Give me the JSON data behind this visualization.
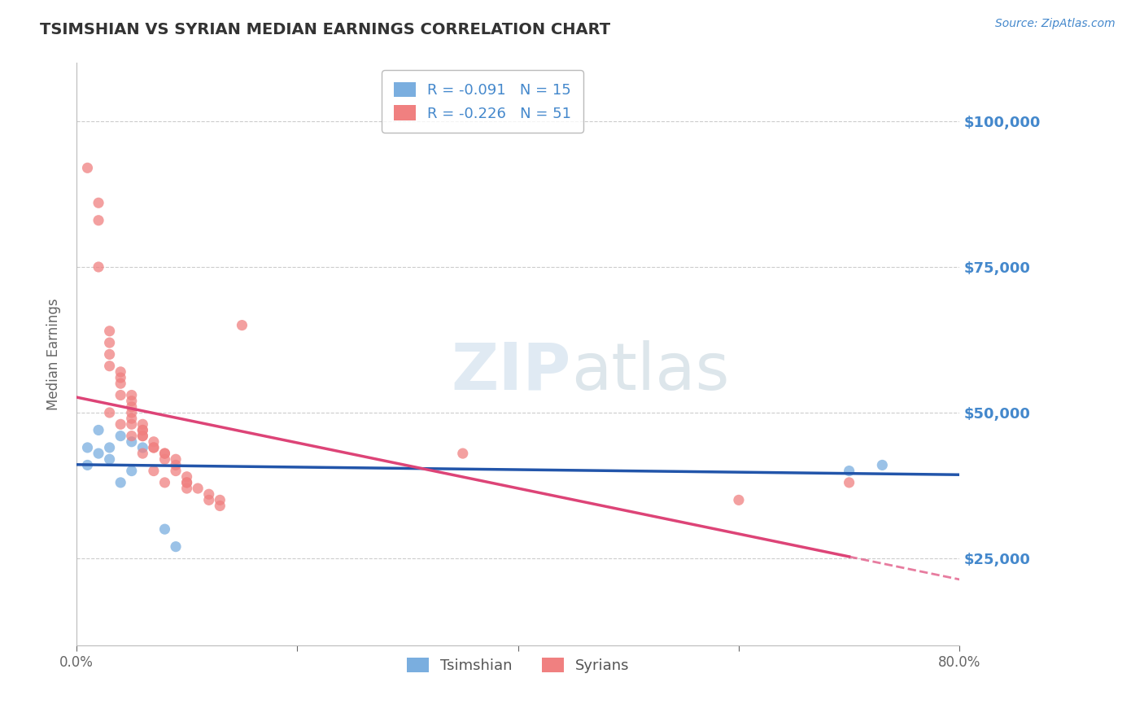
{
  "title": "TSIMSHIAN VS SYRIAN MEDIAN EARNINGS CORRELATION CHART",
  "source_text": "Source: ZipAtlas.com",
  "ylabel": "Median Earnings",
  "watermark_zip": "ZIP",
  "watermark_atlas": "atlas",
  "x_min": 0.0,
  "x_max": 0.8,
  "y_min": 10000,
  "y_max": 110000,
  "yticks": [
    25000,
    50000,
    75000,
    100000
  ],
  "ytick_labels": [
    "$25,000",
    "$50,000",
    "$75,000",
    "$100,000"
  ],
  "xticks": [
    0.0,
    0.2,
    0.4,
    0.6,
    0.8
  ],
  "xtick_labels": [
    "0.0%",
    "",
    "",
    "",
    "80.0%"
  ],
  "tsimshian_R": -0.091,
  "tsimshian_N": 15,
  "syrian_R": -0.226,
  "syrian_N": 51,
  "tsimshian_color": "#7aaedf",
  "syrian_color": "#f08080",
  "tsimshian_line_color": "#2255aa",
  "syrian_line_color": "#dd4477",
  "background_color": "#ffffff",
  "grid_color": "#cccccc",
  "title_color": "#333333",
  "ytick_label_color": "#4488cc",
  "tsimshian_points": [
    [
      0.01,
      44000
    ],
    [
      0.01,
      41000
    ],
    [
      0.02,
      47000
    ],
    [
      0.02,
      43000
    ],
    [
      0.03,
      44000
    ],
    [
      0.03,
      42000
    ],
    [
      0.04,
      46000
    ],
    [
      0.04,
      38000
    ],
    [
      0.05,
      45000
    ],
    [
      0.05,
      40000
    ],
    [
      0.06,
      44000
    ],
    [
      0.08,
      30000
    ],
    [
      0.09,
      27000
    ],
    [
      0.7,
      40000
    ],
    [
      0.73,
      41000
    ]
  ],
  "syrian_points": [
    [
      0.01,
      92000
    ],
    [
      0.02,
      86000
    ],
    [
      0.02,
      83000
    ],
    [
      0.02,
      75000
    ],
    [
      0.03,
      64000
    ],
    [
      0.03,
      62000
    ],
    [
      0.03,
      60000
    ],
    [
      0.03,
      58000
    ],
    [
      0.04,
      57000
    ],
    [
      0.04,
      56000
    ],
    [
      0.04,
      55000
    ],
    [
      0.04,
      53000
    ],
    [
      0.05,
      53000
    ],
    [
      0.05,
      52000
    ],
    [
      0.05,
      51000
    ],
    [
      0.05,
      50000
    ],
    [
      0.05,
      49000
    ],
    [
      0.05,
      48000
    ],
    [
      0.06,
      48000
    ],
    [
      0.06,
      47000
    ],
    [
      0.06,
      46000
    ],
    [
      0.06,
      46000
    ],
    [
      0.07,
      45000
    ],
    [
      0.07,
      44000
    ],
    [
      0.07,
      44000
    ],
    [
      0.08,
      43000
    ],
    [
      0.08,
      43000
    ],
    [
      0.08,
      42000
    ],
    [
      0.09,
      42000
    ],
    [
      0.09,
      41000
    ],
    [
      0.09,
      40000
    ],
    [
      0.1,
      39000
    ],
    [
      0.1,
      38000
    ],
    [
      0.1,
      38000
    ],
    [
      0.1,
      37000
    ],
    [
      0.11,
      37000
    ],
    [
      0.12,
      36000
    ],
    [
      0.12,
      35000
    ],
    [
      0.13,
      35000
    ],
    [
      0.13,
      34000
    ],
    [
      0.15,
      65000
    ],
    [
      0.35,
      43000
    ],
    [
      0.6,
      35000
    ],
    [
      0.7,
      38000
    ],
    [
      0.03,
      50000
    ],
    [
      0.04,
      48000
    ],
    [
      0.05,
      46000
    ],
    [
      0.06,
      47000
    ],
    [
      0.06,
      43000
    ],
    [
      0.07,
      40000
    ],
    [
      0.08,
      38000
    ]
  ]
}
